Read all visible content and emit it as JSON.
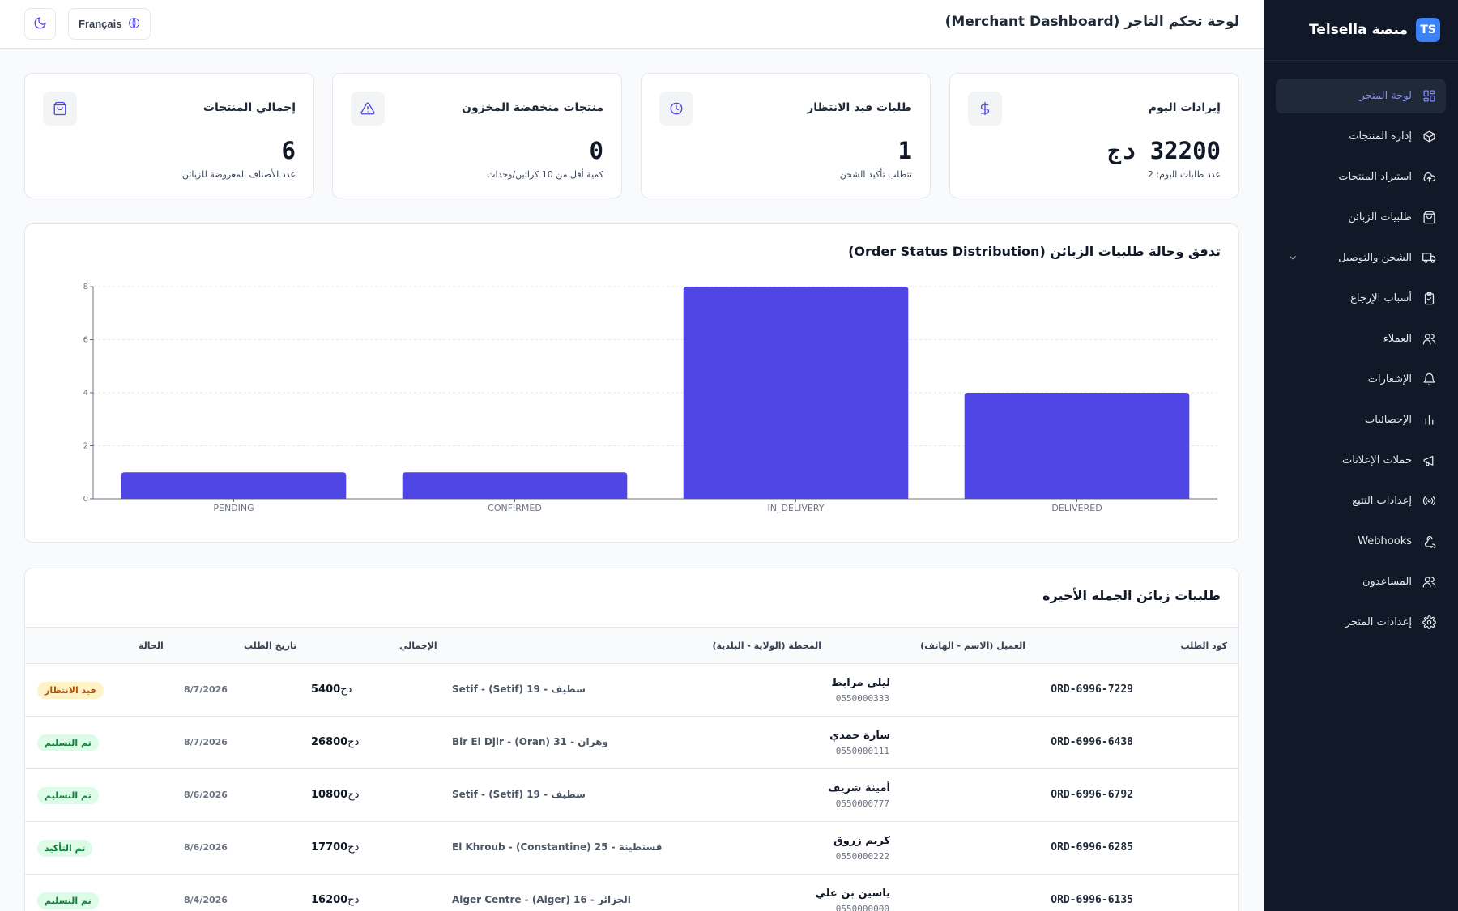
{
  "brand": {
    "name": "منصة Telsella",
    "logo_text": "TS"
  },
  "sidebar": {
    "items": [
      {
        "label": "لوحة المتجر",
        "icon": "dashboard-icon",
        "active": true
      },
      {
        "label": "إدارة المنتجات",
        "icon": "box-icon"
      },
      {
        "label": "استيراد المنتجات",
        "icon": "cloud-upload-icon"
      },
      {
        "label": "طلبيات الزبائن",
        "icon": "shopping-bag-icon"
      },
      {
        "label": "الشحن والتوصيل",
        "icon": "truck-icon",
        "has_children": true
      },
      {
        "label": "أسباب الإرجاع",
        "icon": "clipboard-icon"
      },
      {
        "label": "العملاء",
        "icon": "users-icon"
      },
      {
        "label": "الإشعارات",
        "icon": "bell-icon"
      },
      {
        "label": "الإحصائيات",
        "icon": "bar-chart-icon"
      },
      {
        "label": "حملات الإعلانات",
        "icon": "megaphone-icon"
      },
      {
        "label": "إعدادات التتبع",
        "icon": "radio-icon"
      },
      {
        "label": "Webhooks",
        "icon": "webhook-icon"
      },
      {
        "label": "المساعدون",
        "icon": "users-icon"
      },
      {
        "label": "إعدادات المتجر",
        "icon": "gear-icon"
      }
    ]
  },
  "header": {
    "title": "لوحة تحكم التاجر (Merchant Dashboard)",
    "language_label": "Français"
  },
  "stats": [
    {
      "title": "إيرادات اليوم",
      "value": "32200 دج",
      "sub": "عدد طلبات اليوم: 2",
      "icon": "dollar-icon"
    },
    {
      "title": "طلبات قيد الانتظار",
      "value": "1",
      "sub": "تتطلب تأكيد الشحن",
      "icon": "clock-icon"
    },
    {
      "title": "منتجات منخفضة المخزون",
      "value": "0",
      "sub": "كمية أقل من 10 كراتين/وحدات",
      "icon": "alert-triangle-icon"
    },
    {
      "title": "إجمالي المنتجات",
      "value": "6",
      "sub": "عدد الأصناف المعروضة للزبائن",
      "icon": "shopping-bag-icon"
    }
  ],
  "chart_data": {
    "type": "bar",
    "title": "تدفق وحالة طلبيات الزبائن (Order Status Distribution)",
    "categories": [
      "PENDING",
      "CONFIRMED",
      "IN_DELIVERY",
      "DELIVERED"
    ],
    "values": [
      1,
      1,
      8,
      4
    ],
    "ylim": [
      0,
      8
    ],
    "yticks": [
      0,
      2,
      4,
      6,
      8
    ],
    "grid": true,
    "color": "#4f46e5"
  },
  "orders": {
    "title": "طلبيات زبائن الجملة الأخيرة",
    "headers": {
      "code": "كود الطلب",
      "customer": "العميل (الاسم - الهاتف)",
      "station": "المحطة (الولاية - البلدية)",
      "total": "الإجمالي",
      "date": "تاريخ الطلب",
      "status": "الحالة"
    },
    "currency": "دج",
    "rows": [
      {
        "code": "ORD-6996-7229",
        "name": "ليلى مرابط",
        "phone": "0550000333",
        "station": "Setif - (Setif) سطيف - 19",
        "total": "5400",
        "date": "8/7/2026",
        "status": "قيد الانتظار",
        "status_kind": "pending"
      },
      {
        "code": "ORD-6996-6438",
        "name": "سارة حمدي",
        "phone": "0550000111",
        "station": "Bir El Djir - (Oran) وهران - 31",
        "total": "26800",
        "date": "8/7/2026",
        "status": "تم التسليم",
        "status_kind": "delivered"
      },
      {
        "code": "ORD-6996-6792",
        "name": "أمينة شريف",
        "phone": "0550000777",
        "station": "Setif - (Setif) سطيف - 19",
        "total": "10800",
        "date": "8/6/2026",
        "status": "تم التسليم",
        "status_kind": "delivered"
      },
      {
        "code": "ORD-6996-6285",
        "name": "كريم زروق",
        "phone": "0550000222",
        "station": "El Khroub - (Constantine) قسنطينة - 25",
        "total": "17700",
        "date": "8/6/2026",
        "status": "تم التأكيد",
        "status_kind": "confirmed"
      },
      {
        "code": "ORD-6996-6135",
        "name": "ياسين بن علي",
        "phone": "0550000000",
        "station": "Alger Centre - (Alger) الجزائر - 16",
        "total": "16200",
        "date": "8/4/2026",
        "status": "تم التسليم",
        "status_kind": "delivered"
      }
    ]
  }
}
